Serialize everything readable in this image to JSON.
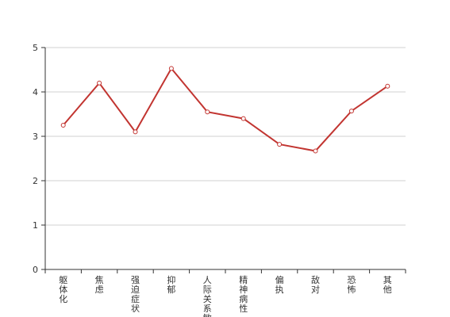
{
  "chart_data": {
    "type": "line",
    "categories": [
      "躯体化",
      "焦虑",
      "强迫症状",
      "抑郁",
      "人际关系敏感",
      "精神病性",
      "偏执",
      "敌对",
      "恐怖",
      "其他"
    ],
    "series": [
      {
        "values": [
          3.25,
          4.2,
          3.1,
          4.53,
          3.55,
          3.4,
          2.82,
          2.67,
          3.57,
          4.13
        ]
      }
    ],
    "ylim": [
      0,
      5
    ],
    "yticks": [
      0,
      1,
      2,
      3,
      4,
      5
    ],
    "grid": true,
    "line_color": "#c23531"
  }
}
